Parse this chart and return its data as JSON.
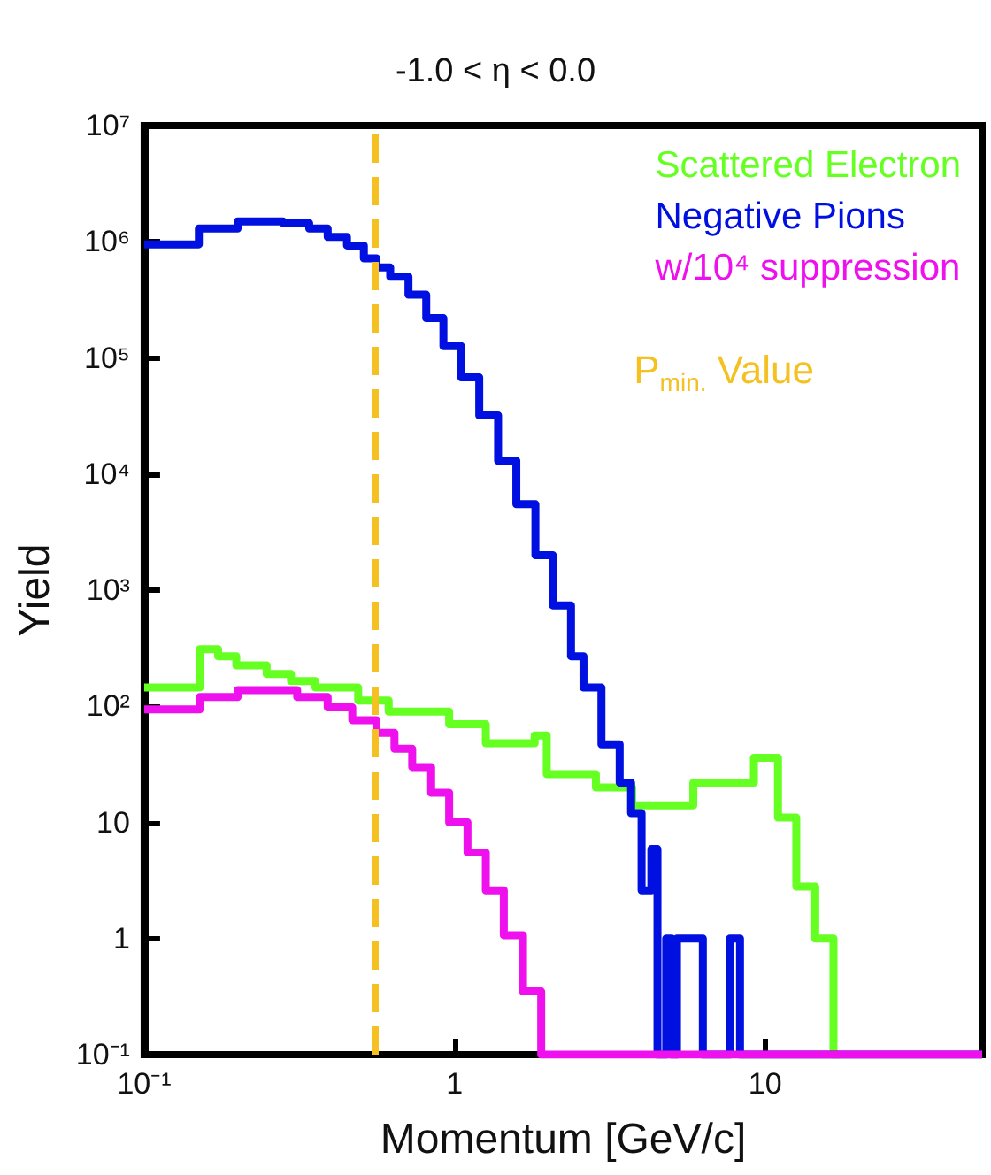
{
  "chart_data": {
    "type": "step",
    "title": "-1.0 < η < 0.0",
    "xlabel": "Momentum [GeV/c]",
    "ylabel": "Yield",
    "log": "xy",
    "grid": false,
    "legend": "top right",
    "marker": "none",
    "line_style": "solid",
    "xlim": [
      0.1,
      50
    ],
    "xticks": [
      {
        "value": 0.1,
        "label": "10⁻¹"
      },
      1,
      10
    ],
    "ylim": [
      0.1,
      10000000
    ],
    "yticks": [
      {
        "value": 0.1,
        "label": "10⁻¹"
      },
      1,
      10,
      {
        "value": 100,
        "label": "10²"
      },
      {
        "value": 1000,
        "label": "10³"
      },
      {
        "value": 10000,
        "label": "10⁴"
      },
      {
        "value": 100000,
        "label": "10⁵"
      },
      {
        "value": 1000000,
        "label": "10⁶"
      },
      {
        "value": 10000000,
        "label": "10⁷"
      }
    ],
    "ref_lines": [
      {
        "axis": "x",
        "value": 0.55,
        "label": "P$_{min.}$ Value",
        "color": "#f5c021",
        "line_style": "dashed"
      }
    ],
    "series": [
      {
        "name": "Scattered Electron",
        "color": "#66ff22",
        "x": [
          0.1,
          0.151,
          0.173,
          0.198,
          0.248,
          0.297,
          0.356,
          0.489,
          0.613,
          0.96,
          1.26,
          1.81,
          1.98,
          2.85,
          3.73,
          5.87,
          9.2,
          11.0,
          12.6,
          14.5,
          16.6,
          17.4
        ],
        "values": [
          145,
          310,
          270,
          225,
          190,
          165,
          145,
          112,
          90,
          70,
          48,
          56,
          26,
          20,
          14,
          22,
          36,
          11,
          2.8,
          1,
          0.1,
          0.1
        ]
      },
      {
        "name": "Negative Pions",
        "color": "#0010e0",
        "x": [
          0.1,
          0.15,
          0.2,
          0.28,
          0.34,
          0.39,
          0.45,
          0.51,
          0.56,
          0.62,
          0.71,
          0.81,
          0.92,
          1.05,
          1.2,
          1.38,
          1.58,
          1.82,
          2.07,
          2.37,
          2.6,
          2.97,
          3.4,
          3.7,
          4.0,
          4.3,
          4.5,
          4.8,
          5.0,
          5.2,
          6.3,
          7.7,
          8.3,
          50
        ],
        "values": [
          950000,
          1300000,
          1500000,
          1450000,
          1300000,
          1100000,
          930000,
          720000,
          600000,
          500000,
          350000,
          220000,
          126000,
          68000,
          32000,
          13000,
          5500,
          2000,
          740,
          270,
          145,
          47,
          22,
          12,
          2.6,
          5.9,
          0.1,
          1,
          0.1,
          1,
          0.1,
          1,
          0.1,
          0.1
        ]
      },
      {
        "name": "w/10⁴ suppression",
        "color": "#ee11ee",
        "x": [
          0.1,
          0.151,
          0.2,
          0.311,
          0.39,
          0.468,
          0.56,
          0.64,
          0.73,
          0.84,
          0.96,
          1.1,
          1.26,
          1.44,
          1.66,
          1.9,
          50
        ],
        "values": [
          94,
          120,
          138,
          120,
          98,
          76,
          59,
          43,
          30,
          18,
          10,
          5.5,
          2.6,
          1.07,
          0.35,
          0.1,
          0.1
        ]
      }
    ]
  }
}
